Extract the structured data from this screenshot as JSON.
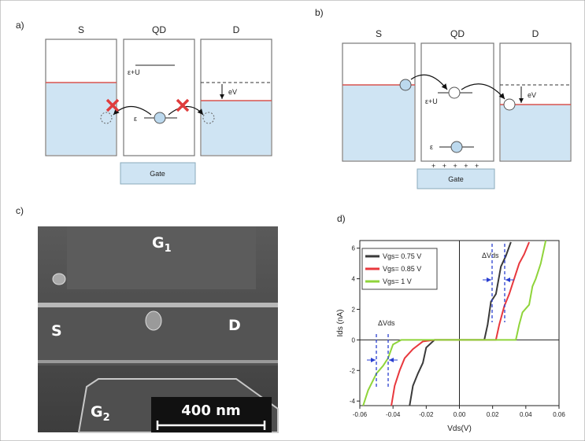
{
  "panel_a": {
    "label": "a)",
    "columns": [
      "S",
      "QD",
      "D"
    ],
    "upper_level": "ε+U",
    "lower_level": "ε",
    "bias": "eV",
    "gate": "Gate"
  },
  "panel_b": {
    "label": "b)",
    "columns": [
      "S",
      "QD",
      "D"
    ],
    "upper_level": "ε+U",
    "lower_level": "ε",
    "bias": "eV",
    "gate": "Gate",
    "charges": "+ + + + +"
  },
  "panel_c": {
    "label": "c)",
    "top_gate": {
      "main": "G",
      "sub": "1"
    },
    "source": "S",
    "drain": "D",
    "bottom_gate": {
      "main": "G",
      "sub": "2"
    },
    "scale_bar": "400 nm"
  },
  "chart_data": {
    "type": "line",
    "label": "d)",
    "xlabel": "Vds(V)",
    "ylabel": "Ids (nA)",
    "xlim": [
      -0.06,
      0.06
    ],
    "ylim": [
      -4.3,
      6.5
    ],
    "xticks": [
      -0.06,
      -0.04,
      -0.02,
      {
        "value": 0,
        "label": "0.00"
      },
      0.02,
      0.04,
      0.06
    ],
    "yticks": [
      -4,
      -2,
      0,
      2,
      4,
      6
    ],
    "annotations": [
      "ΔVds",
      "ΔVds"
    ],
    "series": [
      {
        "name": "Vgs= 0.75 V",
        "color": "#3a3a3a",
        "x": [
          -0.03,
          -0.028,
          -0.025,
          -0.022,
          -0.02,
          -0.015,
          0.015,
          0.017,
          0.019,
          0.022,
          0.025,
          0.028,
          0.031
        ],
        "values": [
          -4.3,
          -3,
          -2.2,
          -1.5,
          -0.5,
          0,
          0,
          1,
          2.5,
          3,
          4.8,
          5.5,
          6.4
        ]
      },
      {
        "name": "Vgs= 0.85 V",
        "color": "#e8383d",
        "x": [
          -0.041,
          -0.039,
          -0.036,
          -0.033,
          -0.028,
          -0.022,
          -0.015,
          0.022,
          0.024,
          0.027,
          0.03,
          0.033,
          0.036,
          0.039,
          0.042
        ],
        "values": [
          -4.3,
          -3,
          -2,
          -1.2,
          -0.6,
          -0.1,
          0,
          0,
          1,
          2.2,
          3,
          4,
          5,
          5.6,
          6.4
        ]
      },
      {
        "name": "Vgs= 1 V",
        "color": "#8fd43a",
        "x": [
          -0.058,
          -0.055,
          -0.05,
          -0.046,
          -0.043,
          -0.04,
          -0.035,
          0.034,
          0.036,
          0.038,
          0.042,
          0.044,
          0.046,
          0.049,
          0.052
        ],
        "values": [
          -4.3,
          -3.3,
          -2.2,
          -1.7,
          -1.2,
          -0.3,
          0,
          0,
          1,
          1.8,
          2.3,
          3.5,
          4,
          5,
          6.5
        ]
      }
    ]
  }
}
